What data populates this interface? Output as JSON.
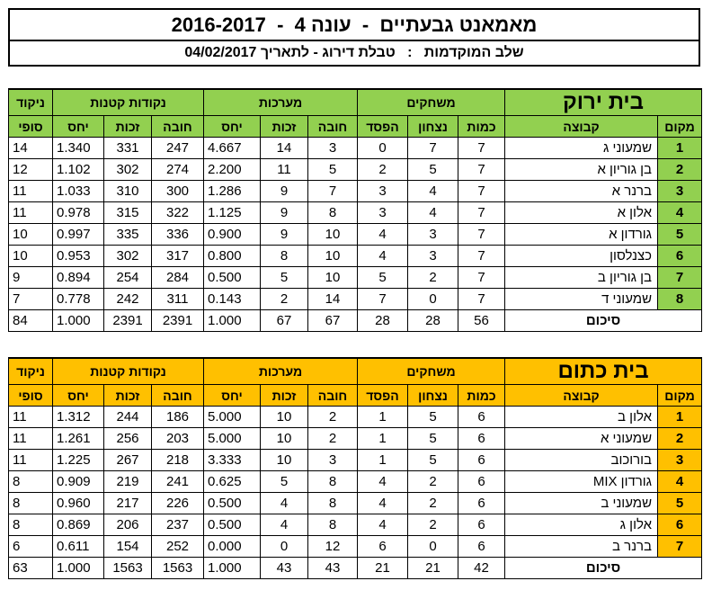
{
  "header": {
    "title": "מאמאנט גבעתיים  -  עונה 4  -  2016-2017",
    "subtitle": "שלב המוקדמות   :   טבלת דירוג - לתאריך 04/02/2017"
  },
  "column_headers": {
    "group_games": "משחקים",
    "group_sets": "מערכות",
    "group_points": "נקודות קטנות",
    "score_top": "ניקוד",
    "score_bottom": "סופי",
    "rank": "מקום",
    "team": "קבוצה",
    "games_count": "כמות",
    "wins": "נצחון",
    "losses": "הפסד",
    "sets_lost": "חובה",
    "sets_won": "זכות",
    "sets_ratio": "יחס",
    "pts_lost": "חובה",
    "pts_won": "זכות",
    "pts_ratio": "יחס",
    "total_label": "סיכום"
  },
  "colors": {
    "green_house": "#92d050",
    "orange_house": "#ffc000"
  },
  "houses": [
    {
      "name": "בית ירוק",
      "rows": [
        {
          "rank": "1",
          "team": "שמעוני ג",
          "games": "7",
          "wins": "7",
          "losses": "0",
          "sets_lost": "3",
          "sets_won": "14",
          "sets_ratio": "4.667",
          "pts_lost": "247",
          "pts_won": "331",
          "pts_ratio": "1.340",
          "score": "14"
        },
        {
          "rank": "2",
          "team": "בן גוריון א",
          "games": "7",
          "wins": "5",
          "losses": "2",
          "sets_lost": "5",
          "sets_won": "11",
          "sets_ratio": "2.200",
          "pts_lost": "274",
          "pts_won": "302",
          "pts_ratio": "1.102",
          "score": "12"
        },
        {
          "rank": "3",
          "team": "ברנר א",
          "games": "7",
          "wins": "4",
          "losses": "3",
          "sets_lost": "7",
          "sets_won": "9",
          "sets_ratio": "1.286",
          "pts_lost": "300",
          "pts_won": "310",
          "pts_ratio": "1.033",
          "score": "11"
        },
        {
          "rank": "4",
          "team": "אלון א",
          "games": "7",
          "wins": "4",
          "losses": "3",
          "sets_lost": "8",
          "sets_won": "9",
          "sets_ratio": "1.125",
          "pts_lost": "322",
          "pts_won": "315",
          "pts_ratio": "0.978",
          "score": "11"
        },
        {
          "rank": "5",
          "team": "גורדון א",
          "games": "7",
          "wins": "3",
          "losses": "4",
          "sets_lost": "10",
          "sets_won": "9",
          "sets_ratio": "0.900",
          "pts_lost": "336",
          "pts_won": "335",
          "pts_ratio": "0.997",
          "score": "10"
        },
        {
          "rank": "6",
          "team": "כצנלסון",
          "games": "7",
          "wins": "3",
          "losses": "4",
          "sets_lost": "10",
          "sets_won": "8",
          "sets_ratio": "0.800",
          "pts_lost": "317",
          "pts_won": "302",
          "pts_ratio": "0.953",
          "score": "10"
        },
        {
          "rank": "7",
          "team": "בן גוריון ב",
          "games": "7",
          "wins": "2",
          "losses": "5",
          "sets_lost": "10",
          "sets_won": "5",
          "sets_ratio": "0.500",
          "pts_lost": "284",
          "pts_won": "254",
          "pts_ratio": "0.894",
          "score": "9"
        },
        {
          "rank": "8",
          "team": "שמעוני ד",
          "games": "7",
          "wins": "0",
          "losses": "7",
          "sets_lost": "14",
          "sets_won": "2",
          "sets_ratio": "0.143",
          "pts_lost": "311",
          "pts_won": "242",
          "pts_ratio": "0.778",
          "score": "7"
        }
      ],
      "total": {
        "games": "56",
        "wins": "28",
        "losses": "28",
        "sets_lost": "67",
        "sets_won": "67",
        "sets_ratio": "1.000",
        "pts_lost": "2391",
        "pts_won": "2391",
        "pts_ratio": "1.000",
        "score": "84"
      }
    },
    {
      "name": "בית כתום",
      "rows": [
        {
          "rank": "1",
          "team": "אלון ב",
          "games": "6",
          "wins": "5",
          "losses": "1",
          "sets_lost": "2",
          "sets_won": "10",
          "sets_ratio": "5.000",
          "pts_lost": "186",
          "pts_won": "244",
          "pts_ratio": "1.312",
          "score": "11"
        },
        {
          "rank": "2",
          "team": "שמעוני א",
          "games": "6",
          "wins": "5",
          "losses": "1",
          "sets_lost": "2",
          "sets_won": "10",
          "sets_ratio": "5.000",
          "pts_lost": "203",
          "pts_won": "256",
          "pts_ratio": "1.261",
          "score": "11"
        },
        {
          "rank": "3",
          "team": "בורוכוב",
          "games": "6",
          "wins": "5",
          "losses": "1",
          "sets_lost": "3",
          "sets_won": "10",
          "sets_ratio": "3.333",
          "pts_lost": "218",
          "pts_won": "267",
          "pts_ratio": "1.225",
          "score": "11"
        },
        {
          "rank": "4",
          "team": "גורדון MIX",
          "games": "6",
          "wins": "2",
          "losses": "4",
          "sets_lost": "8",
          "sets_won": "5",
          "sets_ratio": "0.625",
          "pts_lost": "241",
          "pts_won": "219",
          "pts_ratio": "0.909",
          "score": "8"
        },
        {
          "rank": "5",
          "team": "שמעוני ב",
          "games": "6",
          "wins": "2",
          "losses": "4",
          "sets_lost": "8",
          "sets_won": "4",
          "sets_ratio": "0.500",
          "pts_lost": "226",
          "pts_won": "217",
          "pts_ratio": "0.960",
          "score": "8"
        },
        {
          "rank": "6",
          "team": "אלון ג",
          "games": "6",
          "wins": "2",
          "losses": "4",
          "sets_lost": "8",
          "sets_won": "4",
          "sets_ratio": "0.500",
          "pts_lost": "237",
          "pts_won": "206",
          "pts_ratio": "0.869",
          "score": "8"
        },
        {
          "rank": "7",
          "team": "ברנר ב",
          "games": "6",
          "wins": "0",
          "losses": "6",
          "sets_lost": "12",
          "sets_won": "0",
          "sets_ratio": "0.000",
          "pts_lost": "252",
          "pts_won": "154",
          "pts_ratio": "0.611",
          "score": "6"
        }
      ],
      "total": {
        "games": "42",
        "wins": "21",
        "losses": "21",
        "sets_lost": "43",
        "sets_won": "43",
        "sets_ratio": "1.000",
        "pts_lost": "1563",
        "pts_won": "1563",
        "pts_ratio": "1.000",
        "score": "63"
      }
    }
  ]
}
